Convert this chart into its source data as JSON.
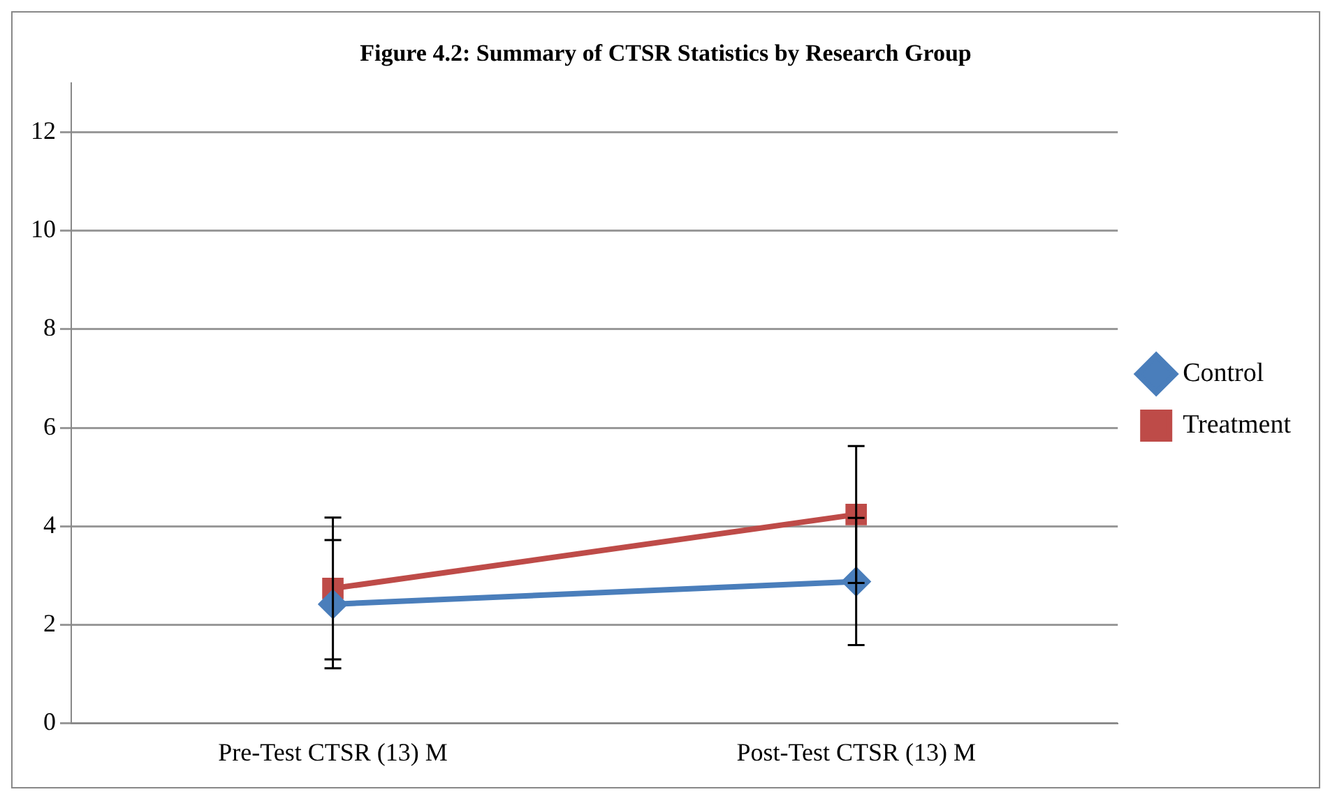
{
  "chart_data": {
    "type": "line",
    "title": "Figure 4.2: Summary of CTSR Statistics by Research Group",
    "categories": [
      "Pre-Test CTSR (13) M",
      "Post-Test CTSR (13) M"
    ],
    "series": [
      {
        "name": "Control",
        "color": "#4a7ebb",
        "values": [
          2.42,
          2.88
        ],
        "errors": [
          1.3,
          1.29
        ],
        "marker": "diamond"
      },
      {
        "name": "Treatment",
        "color": "#be4b48",
        "values": [
          2.74,
          4.24
        ],
        "errors": [
          1.44,
          1.39
        ],
        "marker": "square"
      }
    ],
    "ylim": [
      0,
      13
    ],
    "yticks": [
      0,
      2,
      4,
      6,
      8,
      10,
      12
    ],
    "grid": "y",
    "legend": "right",
    "line_style": "solid"
  }
}
